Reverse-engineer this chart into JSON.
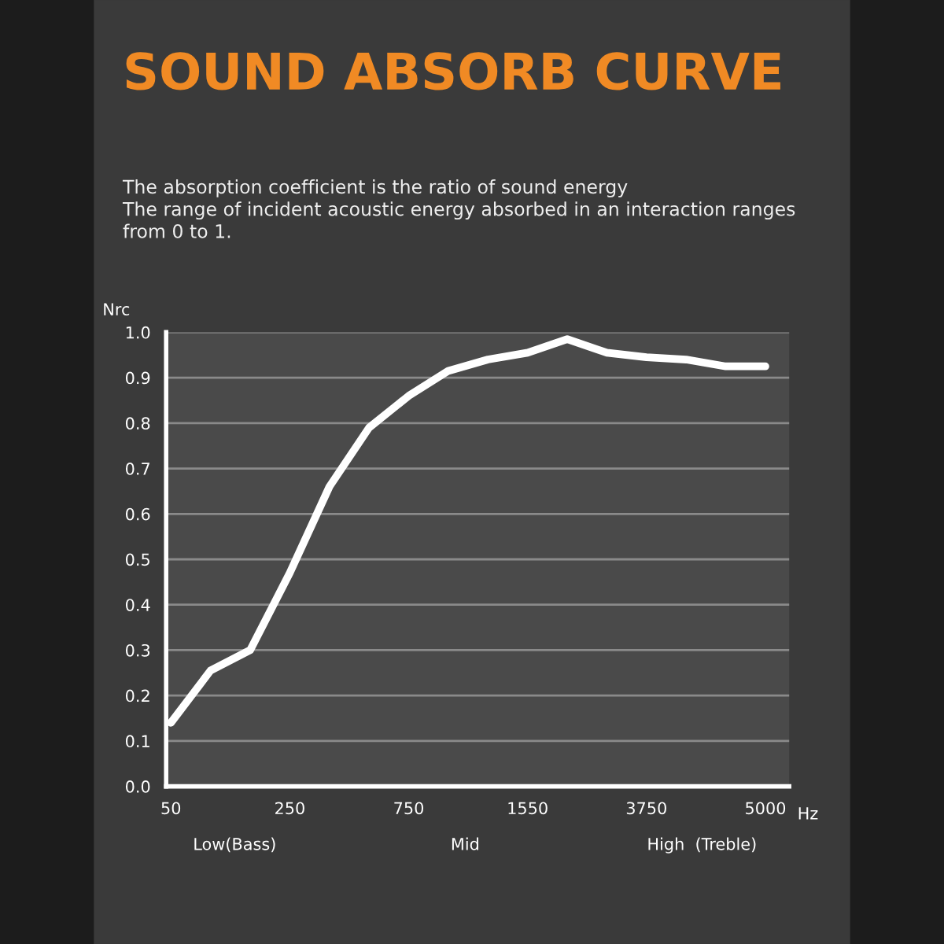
{
  "chart_data": {
    "type": "line",
    "title": "SOUND ABSORB CURVE",
    "subtitle": "The absorption coefficient is the ratio of sound energy\nThe range of incident acoustic energy absorbed in an interaction ranges\nfrom 0 to 1.",
    "ylabel": "Nrc",
    "xlabel": "Hz",
    "categories": [
      "50",
      null,
      null,
      "250",
      null,
      null,
      "750",
      null,
      null,
      "1550",
      null,
      null,
      "3750",
      null,
      null,
      "5000"
    ],
    "series": [
      {
        "color": "#ffffff",
        "values": [
          0.14,
          0.255,
          0.3,
          0.47,
          0.66,
          0.79,
          0.86,
          0.915,
          0.94,
          0.955,
          0.985,
          0.955,
          0.945,
          0.94,
          0.925,
          0.925
        ]
      }
    ],
    "ylim": [
      0,
      1.0
    ],
    "yticks": [
      {
        "value": 0,
        "label": "0.0"
      },
      {
        "value": 0.1,
        "label": "0.1"
      },
      {
        "value": 0.2,
        "label": "0.2"
      },
      {
        "value": 0.3,
        "label": "0.3"
      },
      {
        "value": 0.4,
        "label": "0.4"
      },
      {
        "value": 0.5,
        "label": "0.5"
      },
      {
        "value": 0.6,
        "label": "0.6"
      },
      {
        "value": 0.7,
        "label": "0.7"
      },
      {
        "value": 0.8,
        "label": "0.8"
      },
      {
        "value": 0.9,
        "label": "0.9"
      },
      {
        "value": 1.0,
        "label": "1.0"
      }
    ],
    "grid": "y",
    "marker": "none",
    "line_style": "solid",
    "annotations": [
      "Low(Bass)",
      "Mid",
      "High  (Treble)"
    ]
  }
}
